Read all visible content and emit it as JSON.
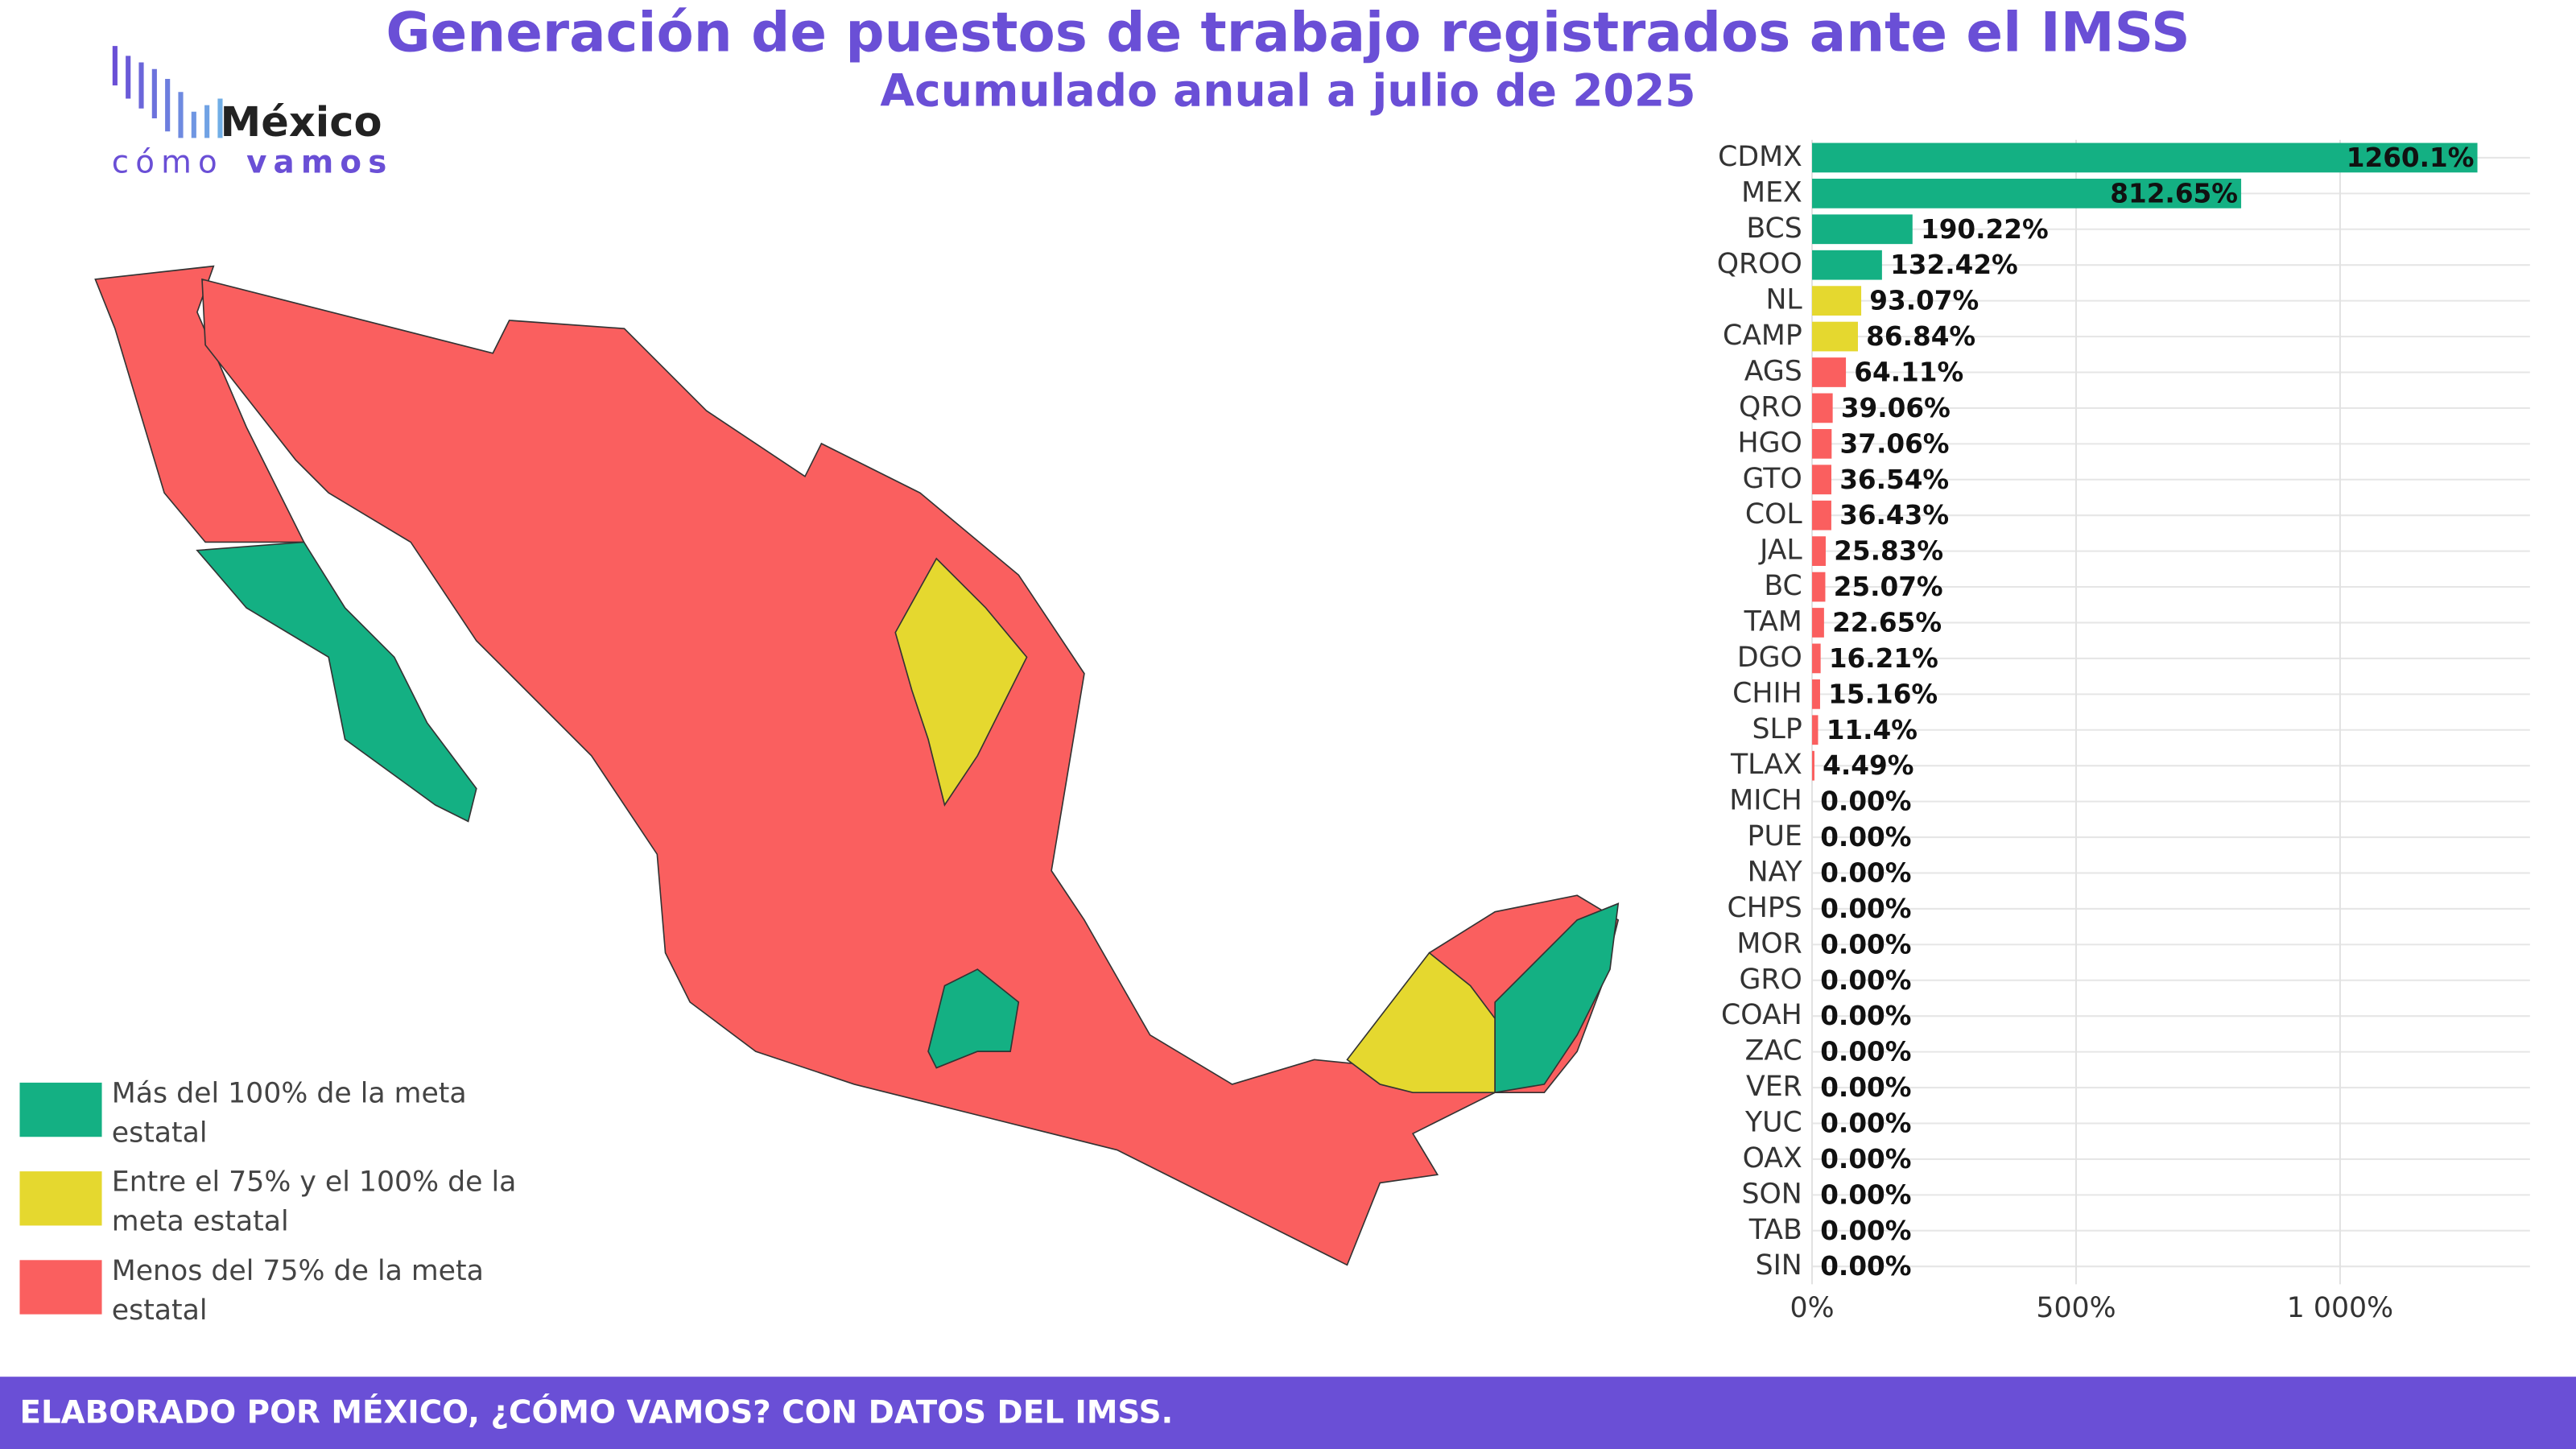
{
  "header": {
    "title": "Generación de puestos de trabajo registrados ante el IMSS",
    "subtitle": "Acumulado anual a julio de 2025"
  },
  "logo": {
    "name": "México",
    "word_1": "cómo",
    "word_2": "vamos"
  },
  "legend": [
    {
      "label": "Más del 100% de la meta estatal",
      "color": "#14b083"
    },
    {
      "label": "Entre el 75% y el 100% de la meta estatal",
      "color": "#e5d82f"
    },
    {
      "label": "Menos del 75% de la meta estatal",
      "color": "#fa5f5f"
    }
  ],
  "chart_data": {
    "type": "bar",
    "orientation": "horizontal",
    "categories": [
      "CDMX",
      "MEX",
      "BCS",
      "QROO",
      "NL",
      "CAMP",
      "AGS",
      "QRO",
      "HGO",
      "GTO",
      "COL",
      "JAL",
      "BC",
      "TAM",
      "DGO",
      "CHIH",
      "SLP",
      "TLAX",
      "MICH",
      "PUE",
      "NAY",
      "CHPS",
      "MOR",
      "GRO",
      "COAH",
      "ZAC",
      "VER",
      "YUC",
      "OAX",
      "SON",
      "TAB",
      "SIN"
    ],
    "values": [
      1260.1,
      812.65,
      190.22,
      132.42,
      93.07,
      86.84,
      64.11,
      39.06,
      37.06,
      36.54,
      36.43,
      25.83,
      25.07,
      22.65,
      16.21,
      15.16,
      11.4,
      4.49,
      0,
      0,
      0,
      0,
      0,
      0,
      0,
      0,
      0,
      0,
      0,
      0,
      0,
      0
    ],
    "value_labels": [
      "1260.1%",
      "812.65%",
      "190.22%",
      "132.42%",
      "93.07%",
      "86.84%",
      "64.11%",
      "39.06%",
      "37.06%",
      "36.54%",
      "36.43%",
      "25.83%",
      "25.07%",
      "22.65%",
      "16.21%",
      "15.16%",
      "11.4%",
      "4.49%",
      "0.00%",
      "0.00%",
      "0.00%",
      "0.00%",
      "0.00%",
      "0.00%",
      "0.00%",
      "0.00%",
      "0.00%",
      "0.00%",
      "0.00%",
      "0.00%",
      "0.00%",
      "0.00%"
    ],
    "colors": [
      "#14b083",
      "#14b083",
      "#14b083",
      "#14b083",
      "#e5d82f",
      "#e5d82f",
      "#fa5f5f",
      "#fa5f5f",
      "#fa5f5f",
      "#fa5f5f",
      "#fa5f5f",
      "#fa5f5f",
      "#fa5f5f",
      "#fa5f5f",
      "#fa5f5f",
      "#fa5f5f",
      "#fa5f5f",
      "#fa5f5f",
      "#fa5f5f",
      "#fa5f5f",
      "#fa5f5f",
      "#fa5f5f",
      "#fa5f5f",
      "#fa5f5f",
      "#fa5f5f",
      "#fa5f5f",
      "#fa5f5f",
      "#fa5f5f",
      "#fa5f5f",
      "#fa5f5f",
      "#fa5f5f",
      "#fa5f5f"
    ],
    "xlim": [
      0,
      1360
    ],
    "xticks": [
      {
        "value": 0,
        "label": "0%"
      },
      {
        "value": 500,
        "label": "500%"
      },
      {
        "value": 1000,
        "label": "1 000%"
      }
    ],
    "grid": true
  },
  "footer": "ELABORADO POR MÉXICO, ¿CÓMO VAMOS? CON DATOS DEL IMSS."
}
